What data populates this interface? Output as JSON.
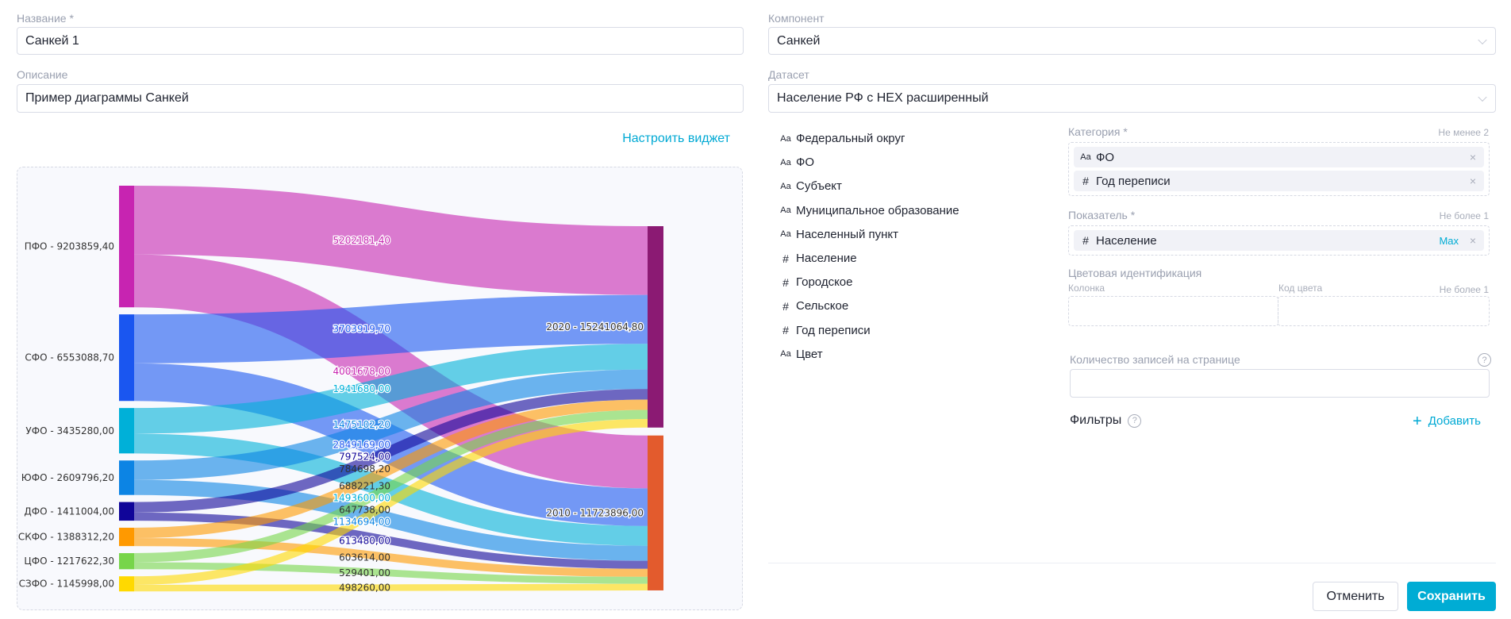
{
  "form": {
    "name_label": "Название *",
    "name_value": "Санкей 1",
    "description_label": "Описание",
    "description_value": "Пример диаграммы Санкей",
    "configure_widget": "Настроить виджет",
    "component_label": "Компонент",
    "component_value": "Санкей",
    "dataset_label": "Датасет",
    "dataset_value": "Население РФ с HEX расширенный"
  },
  "fields": [
    {
      "type": "Aa",
      "label": "Федеральный округ"
    },
    {
      "type": "Aa",
      "label": "ФО"
    },
    {
      "type": "Aa",
      "label": "Субъект"
    },
    {
      "type": "Aa",
      "label": "Муниципальное образование"
    },
    {
      "type": "Aa",
      "label": "Населенный пункт"
    },
    {
      "type": "#",
      "label": "Население"
    },
    {
      "type": "#",
      "label": "Городское"
    },
    {
      "type": "#",
      "label": "Сельское"
    },
    {
      "type": "#",
      "label": "Год переписи"
    },
    {
      "type": "Aa",
      "label": "Цвет"
    }
  ],
  "config": {
    "category_label": "Категория *",
    "category_hint": "Не менее 2",
    "category_items": [
      {
        "type": "Aa",
        "label": "ФО"
      },
      {
        "type": "#",
        "label": "Год переписи"
      }
    ],
    "measure_label": "Показатель *",
    "measure_hint": "Не более 1",
    "measure_item": {
      "type": "#",
      "label": "Население",
      "agg": "Max"
    },
    "color_label": "Цветовая идентификация",
    "color_column_label": "Колонка",
    "color_code_label": "Код цвета",
    "color_hint": "Не более 1",
    "records_label": "Количество записей на странице",
    "records_value": "",
    "filters_label": "Фильтры",
    "add_label": "Добавить",
    "remove_glyph": "×",
    "help_glyph": "?",
    "add_glyph": "+"
  },
  "footer": {
    "cancel": "Отменить",
    "save": "Сохранить"
  },
  "colors": {
    "accent": "#00acd4",
    "border": "#d9dce6"
  },
  "chart_data": {
    "type": "sankey",
    "sources": [
      {
        "name": "ПФО",
        "value": 9203859.4,
        "color": "#c724b1"
      },
      {
        "name": "СФО",
        "value": 6553088.7,
        "color": "#1a56f0"
      },
      {
        "name": "УФО",
        "value": 3435280.0,
        "color": "#00b0d8"
      },
      {
        "name": "ЮФО",
        "value": 2609796.2,
        "color": "#0c84e4"
      },
      {
        "name": "ДФО",
        "value": 1411004.0,
        "color": "#100599"
      },
      {
        "name": "СКФО",
        "value": 1388312.2,
        "color": "#ff9900"
      },
      {
        "name": "ЦФО",
        "value": 1217622.3,
        "color": "#77d54a"
      },
      {
        "name": "СЗФО",
        "value": 1145998.0,
        "color": "#ffd900"
      }
    ],
    "targets": [
      {
        "name": "2020",
        "value": 15241064.8,
        "color": "#8b1a73"
      },
      {
        "name": "2010",
        "value": 11723896.0,
        "color": "#e35b2d"
      }
    ],
    "links": [
      {
        "source": "ПФО",
        "target": "2020",
        "value": 5202181.4
      },
      {
        "source": "ПФО",
        "target": "2010",
        "value": 4001678.0
      },
      {
        "source": "СФО",
        "target": "2020",
        "value": 3703919.7
      },
      {
        "source": "СФО",
        "target": "2010",
        "value": 2849169.0
      },
      {
        "source": "УФО",
        "target": "2020",
        "value": 1941680.0
      },
      {
        "source": "УФО",
        "target": "2010",
        "value": 1493600.0
      },
      {
        "source": "ЮФО",
        "target": "2020",
        "value": 1475102.2
      },
      {
        "source": "ЮФО",
        "target": "2010",
        "value": 1134694.0
      },
      {
        "source": "ДФО",
        "target": "2020",
        "value": 797524.0
      },
      {
        "source": "ДФО",
        "target": "2010",
        "value": 613480.0
      },
      {
        "source": "СКФО",
        "target": "2020",
        "value": 784698.2
      },
      {
        "source": "СКФО",
        "target": "2010",
        "value": 603614.0
      },
      {
        "source": "ЦФО",
        "target": "2020",
        "value": 688221.3
      },
      {
        "source": "ЦФО",
        "target": "2010",
        "value": 529401.0
      },
      {
        "source": "СЗФО",
        "target": "2020",
        "value": 647738.0
      },
      {
        "source": "СЗФО",
        "target": "2010",
        "value": 498260.0
      }
    ]
  }
}
